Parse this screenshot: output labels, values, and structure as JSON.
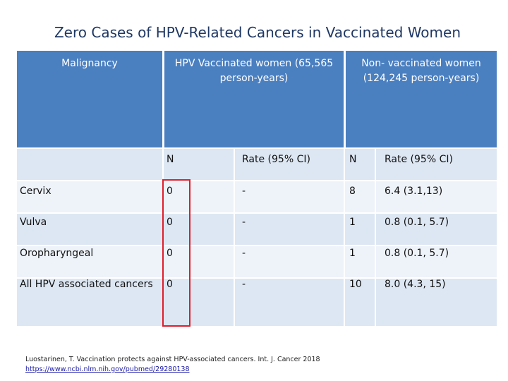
{
  "title": "Zero Cases of HPV-Related Cancers in Vaccinated Women",
  "table": {
    "headers": {
      "malignancy": "Malignancy",
      "vaccinated": "HPV Vaccinated women (65,565 person-years)",
      "nonvaccinated": "Non- vaccinated women (124,245 person-years)"
    },
    "subheaders": {
      "vac_n": "N",
      "vac_rate": "Rate (95% CI)",
      "non_n": "N",
      "non_rate": "Rate (95% CI)"
    },
    "rows": [
      {
        "malignancy": "Cervix",
        "vac_n": "0",
        "vac_rate": "-",
        "non_n": "8",
        "non_rate": "6.4 (3.1,13)"
      },
      {
        "malignancy": "Vulva",
        "vac_n": "0",
        "vac_rate": "-",
        "non_n": "1",
        "non_rate": "0.8 (0.1, 5.7)"
      },
      {
        "malignancy": "Oropharyngeal",
        "vac_n": "0",
        "vac_rate": "-",
        "non_n": "1",
        "non_rate": "0.8 (0.1, 5.7)"
      },
      {
        "malignancy": "All HPV associated cancers",
        "vac_n": "0",
        "vac_rate": "-",
        "non_n": "10",
        "non_rate": "8.0 (4.3, 15)"
      }
    ]
  },
  "citation": {
    "text": "Luostarinen, T. Vaccination protects against HPV-associated cancers. Int. J. Cancer 2018",
    "link": "https://www.ncbi.nlm.nih.gov/pubmed/29280138"
  },
  "colors": {
    "header_bg": "#4a7fc0",
    "band_bg": "#dde7f3",
    "band_alt_bg": "#eef3fa",
    "highlight": "#e11d2a"
  }
}
